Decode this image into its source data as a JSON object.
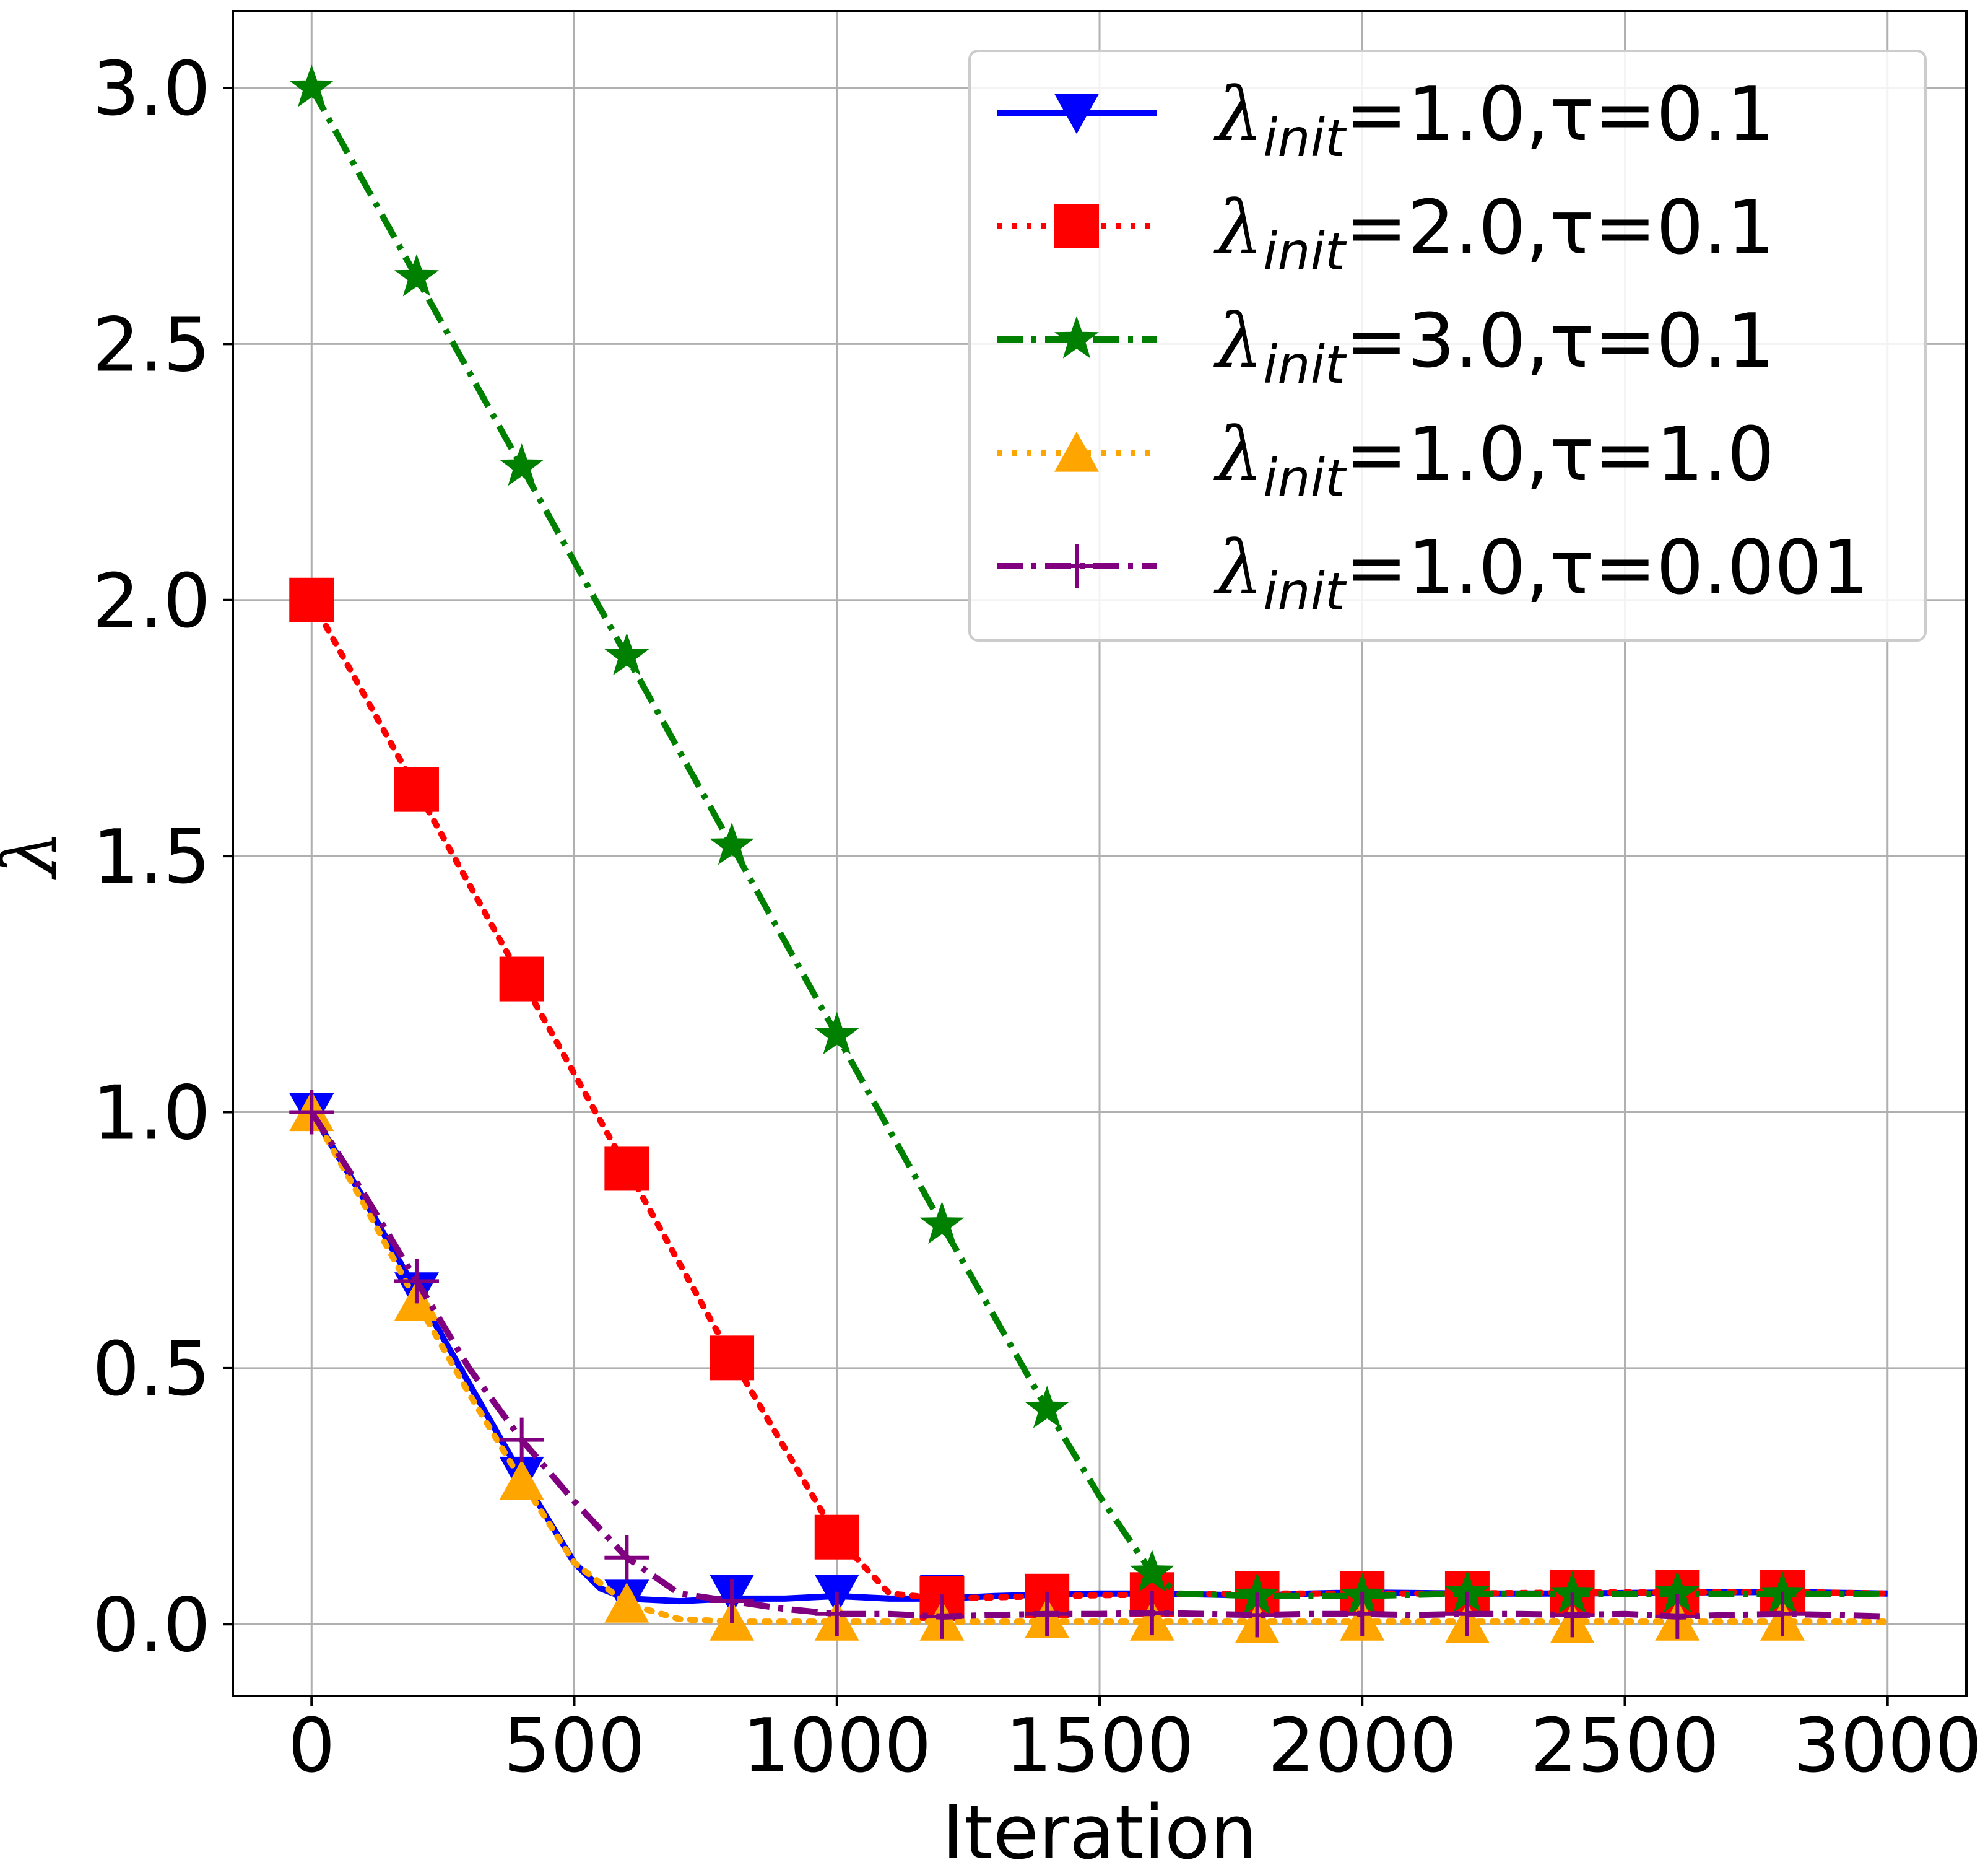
{
  "chart_data": {
    "type": "line",
    "title": "",
    "xlabel": "Iteration",
    "ylabel": "λ",
    "xlim": [
      -150,
      3150
    ],
    "ylim": [
      -0.14,
      3.15
    ],
    "xticks": [
      0,
      500,
      1000,
      1500,
      2000,
      2500,
      3000
    ],
    "yticks": [
      0.0,
      0.5,
      1.0,
      1.5,
      2.0,
      2.5,
      3.0
    ],
    "xtick_labels": [
      "0",
      "500",
      "1000",
      "1500",
      "2000",
      "2500",
      "3000"
    ],
    "ytick_labels": [
      "0.0",
      "0.5",
      "1.0",
      "1.5",
      "2.0",
      "2.5",
      "3.0"
    ],
    "grid": true,
    "legend_position": "top-right",
    "series": [
      {
        "name": "λinit=1.0,τ=0.1",
        "legend": {
          "symbol": "λ",
          "sub": "init",
          "rest": "=1.0,τ=0.1"
        },
        "color": "#0000ff",
        "linestyle": "solid",
        "marker": "triangle-down",
        "x": [
          0,
          100,
          200,
          300,
          400,
          500,
          550,
          600,
          700,
          800,
          900,
          1000,
          1100,
          1200,
          1300,
          1400,
          1500,
          1600,
          1700,
          1800,
          1900,
          2000,
          2200,
          2400,
          2600,
          2800,
          3000
        ],
        "values": [
          1.0,
          0.83,
          0.65,
          0.47,
          0.29,
          0.12,
          0.07,
          0.05,
          0.045,
          0.05,
          0.05,
          0.055,
          0.05,
          0.05,
          0.055,
          0.058,
          0.06,
          0.06,
          0.058,
          0.056,
          0.06,
          0.062,
          0.06,
          0.06,
          0.062,
          0.063,
          0.06
        ],
        "marker_x": [
          0,
          200,
          400,
          600,
          800,
          1000,
          1200,
          1400,
          1600,
          1800,
          2000,
          2200,
          2400,
          2600,
          2800
        ],
        "marker_values": [
          1.0,
          0.65,
          0.29,
          0.05,
          0.06,
          0.06,
          0.06,
          0.06,
          0.06,
          0.06,
          0.06,
          0.06,
          0.06,
          0.06,
          0.06
        ]
      },
      {
        "name": "λinit=2.0,τ=0.1",
        "legend": {
          "symbol": "λ",
          "sub": "init",
          "rest": "=2.0,τ=0.1"
        },
        "color": "#ff0000",
        "linestyle": "dotted",
        "marker": "square",
        "x": [
          0,
          200,
          400,
          600,
          800,
          1000,
          1100,
          1200,
          1400,
          1600,
          1800,
          2000,
          2200,
          2400,
          2600,
          2800,
          3000
        ],
        "values": [
          2.0,
          1.63,
          1.26,
          0.89,
          0.52,
          0.17,
          0.06,
          0.05,
          0.055,
          0.058,
          0.06,
          0.06,
          0.06,
          0.062,
          0.062,
          0.063,
          0.06
        ],
        "marker_x": [
          0,
          200,
          400,
          600,
          800,
          1000,
          1200,
          1400,
          1600,
          1800,
          2000,
          2200,
          2400,
          2600,
          2800
        ],
        "marker_values": [
          2.0,
          1.63,
          1.26,
          0.89,
          0.52,
          0.17,
          0.05,
          0.055,
          0.058,
          0.06,
          0.06,
          0.06,
          0.062,
          0.062,
          0.063
        ]
      },
      {
        "name": "λinit=3.0,τ=0.1",
        "legend": {
          "symbol": "λ",
          "sub": "init",
          "rest": "=3.0,τ=0.1"
        },
        "color": "#008000",
        "linestyle": "dashdot",
        "marker": "star",
        "x": [
          0,
          200,
          400,
          600,
          800,
          1000,
          1200,
          1400,
          1500,
          1600,
          1650,
          1800,
          2000,
          2200,
          2400,
          2600,
          2800,
          3000
        ],
        "values": [
          3.0,
          2.63,
          2.26,
          1.89,
          1.52,
          1.15,
          0.78,
          0.42,
          0.25,
          0.1,
          0.06,
          0.055,
          0.055,
          0.06,
          0.058,
          0.06,
          0.058,
          0.06
        ],
        "marker_x": [
          0,
          200,
          400,
          600,
          800,
          1000,
          1200,
          1400,
          1600,
          1800,
          2000,
          2200,
          2400,
          2600,
          2800
        ],
        "marker_values": [
          3.0,
          2.63,
          2.26,
          1.89,
          1.52,
          1.15,
          0.78,
          0.42,
          0.1,
          0.055,
          0.055,
          0.06,
          0.058,
          0.06,
          0.058
        ]
      },
      {
        "name": "λinit=1.0,τ=1.0",
        "legend": {
          "symbol": "λ",
          "sub": "init",
          "rest": "=1.0,τ=1.0"
        },
        "color": "#ffa500",
        "linestyle": "dotted",
        "marker": "triangle-up",
        "x": [
          0,
          100,
          200,
          300,
          400,
          500,
          600,
          700,
          800,
          1000,
          1200,
          1400,
          1600,
          1800,
          2000,
          2200,
          2400,
          2600,
          2800,
          3000
        ],
        "values": [
          1.0,
          0.82,
          0.63,
          0.45,
          0.28,
          0.12,
          0.04,
          0.01,
          0.005,
          0.005,
          0.005,
          0.005,
          0.005,
          0.005,
          0.005,
          0.005,
          0.005,
          0.005,
          0.005,
          0.005
        ],
        "marker_x": [
          0,
          200,
          400,
          600,
          800,
          1000,
          1200,
          1400,
          1600,
          1800,
          2000,
          2200,
          2400,
          2600,
          2800
        ],
        "marker_values": [
          1.0,
          0.63,
          0.28,
          0.04,
          0.005,
          0.005,
          0.005,
          0.01,
          0.005,
          0.0,
          0.005,
          0.0,
          0.0,
          0.005,
          0.005
        ]
      },
      {
        "name": "λinit=1.0,τ=0.001",
        "legend": {
          "symbol": "λ",
          "sub": "init",
          "rest": "=1.0,τ=0.001"
        },
        "color": "#800080",
        "linestyle": "dashdot",
        "marker": "plus",
        "x": [
          0,
          100,
          200,
          300,
          400,
          500,
          600,
          700,
          800,
          900,
          1000,
          1100,
          1200,
          1300,
          1400,
          1500,
          1600,
          1700,
          1800,
          1900,
          2000,
          2100,
          2200,
          2300,
          2400,
          2500,
          2600,
          2700,
          2800,
          2900,
          3000
        ],
        "values": [
          1.0,
          0.84,
          0.67,
          0.5,
          0.36,
          0.24,
          0.13,
          0.06,
          0.045,
          0.03,
          0.02,
          0.02,
          0.015,
          0.018,
          0.02,
          0.02,
          0.022,
          0.02,
          0.018,
          0.02,
          0.02,
          0.018,
          0.02,
          0.02,
          0.018,
          0.02,
          0.015,
          0.018,
          0.02,
          0.018,
          0.015
        ],
        "marker_x": [
          0,
          200,
          400,
          600,
          800,
          1000,
          1200,
          1400,
          1600,
          1800,
          2000,
          2200,
          2400,
          2600,
          2800
        ],
        "marker_values": [
          1.0,
          0.67,
          0.36,
          0.13,
          0.045,
          0.02,
          0.015,
          0.02,
          0.022,
          0.018,
          0.02,
          0.02,
          0.018,
          0.015,
          0.02
        ]
      }
    ]
  }
}
